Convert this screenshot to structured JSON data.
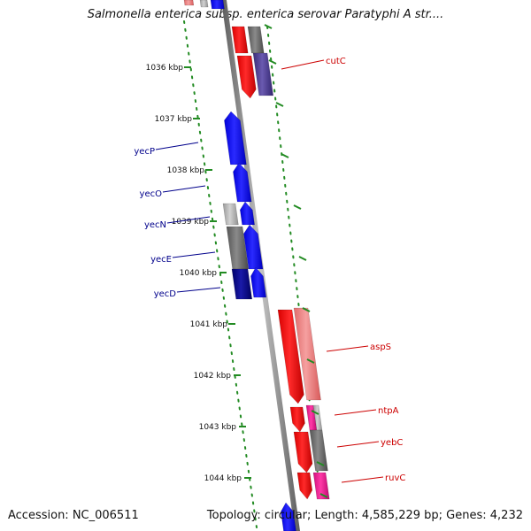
{
  "title": "Salmonella enterica subsp. enterica serovar Paratyphi A str....",
  "footer": {
    "accession": "Accession: NC_006511",
    "topology": "Topology: circular; Length: 4,585,229 bp; Genes: 4,232"
  },
  "colors": {
    "forward_strand": "#ff0000",
    "reverse_strand": "#0000ff",
    "ruler_ticks": "#228b22",
    "backbone": "#808080"
  },
  "ruler": {
    "ticks": [
      "1036 kbp",
      "1037 kbp",
      "1038 kbp",
      "1039 kbp",
      "1040 kbp",
      "1041 kbp",
      "1042 kbp",
      "1043 kbp",
      "1044 kbp"
    ]
  },
  "genes": {
    "reverse": [
      {
        "label": "yecP",
        "color": "#0000ff",
        "track": "inner"
      },
      {
        "label": "yecO",
        "color": "#0000ff",
        "track": "inner"
      },
      {
        "label": "yecN",
        "color": "#b0b0b0",
        "track": "outer"
      },
      {
        "label": "yecE",
        "color": "#6e6e6e",
        "track": "outer"
      },
      {
        "label": "yecD",
        "color": "#00008b",
        "track": "outer"
      }
    ],
    "forward": [
      {
        "label": "cutC",
        "color": "#ff0000",
        "track": "inner"
      },
      {
        "label": "aspS",
        "color": "#ff0000",
        "track": "inner"
      },
      {
        "label": "ntpA",
        "color": "#ff0000",
        "track": "inner"
      },
      {
        "label": "yebC",
        "color": "#ff0000",
        "track": "inner"
      },
      {
        "label": "ruvC",
        "color": "#ff0000",
        "track": "inner"
      }
    ]
  }
}
